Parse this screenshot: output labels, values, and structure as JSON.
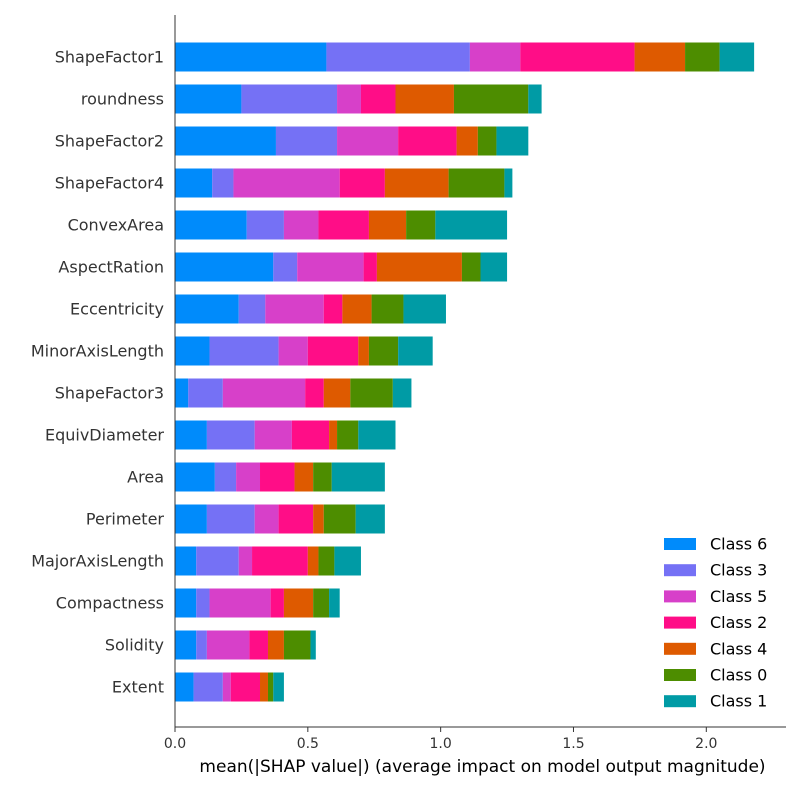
{
  "chart_data": {
    "type": "bar",
    "orientation": "horizontal",
    "stacked": true,
    "xlabel": "mean(|SHAP value|) (average impact on model output magnitude)",
    "ylabel": "",
    "xlim": [
      0,
      2.3
    ],
    "xticks": [
      0.0,
      0.5,
      1.0,
      1.5,
      2.0
    ],
    "xtick_labels": [
      "0.0",
      "0.5",
      "1.0",
      "1.5",
      "2.0"
    ],
    "grid": false,
    "legend_position": "bottom-right",
    "categories": [
      "ShapeFactor1",
      "roundness",
      "ShapeFactor2",
      "ShapeFactor4",
      "ConvexArea",
      "AspectRation",
      "Eccentricity",
      "MinorAxisLength",
      "ShapeFactor3",
      "EquivDiameter",
      "Area",
      "Perimeter",
      "MajorAxisLength",
      "Compactness",
      "Solidity",
      "Extent"
    ],
    "series": [
      {
        "name": "Class 6",
        "color": "#008bfb",
        "values": [
          0.57,
          0.25,
          0.38,
          0.14,
          0.27,
          0.37,
          0.24,
          0.13,
          0.05,
          0.12,
          0.15,
          0.12,
          0.08,
          0.08,
          0.08,
          0.07
        ]
      },
      {
        "name": "Class 3",
        "color": "#7571f5",
        "values": [
          0.54,
          0.36,
          0.23,
          0.08,
          0.14,
          0.09,
          0.1,
          0.26,
          0.13,
          0.18,
          0.08,
          0.18,
          0.16,
          0.05,
          0.04,
          0.11
        ]
      },
      {
        "name": "Class 5",
        "color": "#d740c9",
        "values": [
          0.19,
          0.09,
          0.23,
          0.4,
          0.13,
          0.25,
          0.22,
          0.11,
          0.31,
          0.14,
          0.09,
          0.09,
          0.05,
          0.23,
          0.16,
          0.03
        ]
      },
      {
        "name": "Class 2",
        "color": "#ff0d87",
        "values": [
          0.43,
          0.13,
          0.22,
          0.17,
          0.19,
          0.05,
          0.07,
          0.19,
          0.07,
          0.14,
          0.13,
          0.13,
          0.21,
          0.05,
          0.07,
          0.11
        ]
      },
      {
        "name": "Class 4",
        "color": "#de5a00",
        "values": [
          0.19,
          0.22,
          0.08,
          0.24,
          0.14,
          0.32,
          0.11,
          0.04,
          0.1,
          0.03,
          0.07,
          0.04,
          0.04,
          0.11,
          0.06,
          0.03
        ]
      },
      {
        "name": "Class 0",
        "color": "#4d8d00",
        "values": [
          0.13,
          0.28,
          0.07,
          0.21,
          0.11,
          0.07,
          0.12,
          0.11,
          0.16,
          0.08,
          0.07,
          0.12,
          0.06,
          0.06,
          0.1,
          0.02
        ]
      },
      {
        "name": "Class 1",
        "color": "#009ba5",
        "values": [
          0.13,
          0.05,
          0.12,
          0.03,
          0.27,
          0.1,
          0.16,
          0.13,
          0.07,
          0.14,
          0.2,
          0.11,
          0.1,
          0.04,
          0.02,
          0.04
        ]
      }
    ]
  }
}
